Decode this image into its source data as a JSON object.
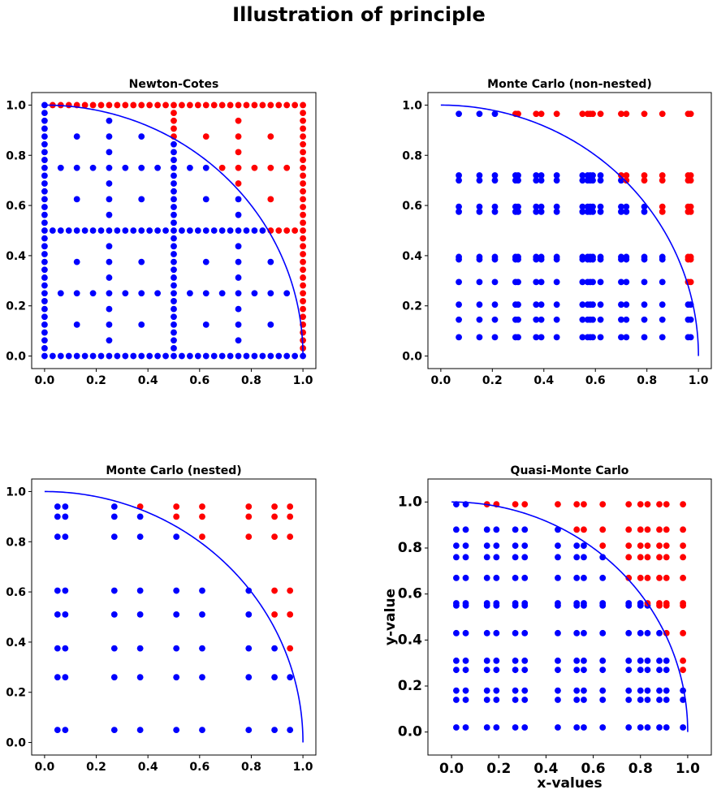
{
  "figure_title": "Illustration of principle",
  "colors": {
    "inside": "#0000ff",
    "outside": "#ff0000",
    "curve": "#0000ff"
  },
  "chart_data": [
    {
      "type": "scatter",
      "title": "Newton-Cotes",
      "xlabel": "",
      "ylabel": "",
      "xlim": [
        -0.05,
        1.05
      ],
      "ylim": [
        -0.05,
        1.05
      ],
      "xticks": [
        "0.0",
        "0.2",
        "0.4",
        "0.6",
        "0.8",
        "1.0"
      ],
      "yticks": [
        "0.0",
        "0.2",
        "0.4",
        "0.6",
        "0.8",
        "1.0"
      ],
      "curve": "quarter-circle y = sqrt(1 - x^2)",
      "grid": false,
      "points": {
        "kind": "newton-cotes-grid"
      }
    },
    {
      "type": "scatter",
      "title": "Monte Carlo (non-nested)",
      "xlabel": "",
      "ylabel": "",
      "xlim": [
        -0.05,
        1.05
      ],
      "ylim": [
        -0.05,
        1.05
      ],
      "xticks": [
        "0.0",
        "0.2",
        "0.4",
        "0.6",
        "0.8",
        "1.0"
      ],
      "yticks": [
        "0.0",
        "0.2",
        "0.4",
        "0.6",
        "0.8",
        "1.0"
      ],
      "curve": "quarter-circle y = sqrt(1 - x^2)",
      "grid": false,
      "points": {
        "kind": "cross-product",
        "xs": [
          0.07,
          0.15,
          0.21,
          0.29,
          0.3,
          0.37,
          0.39,
          0.45,
          0.55,
          0.57,
          0.58,
          0.59,
          0.62,
          0.7,
          0.72,
          0.79,
          0.86,
          0.96,
          0.97
        ],
        "ys": [
          0.075,
          0.145,
          0.205,
          0.295,
          0.385,
          0.395,
          0.575,
          0.595,
          0.7,
          0.72,
          0.965
        ]
      }
    },
    {
      "type": "scatter",
      "title": "Monte Carlo (nested)",
      "xlabel": "",
      "ylabel": "",
      "xlim": [
        -0.05,
        1.05
      ],
      "ylim": [
        -0.05,
        1.05
      ],
      "xticks": [
        "0.0",
        "0.2",
        "0.4",
        "0.6",
        "0.8",
        "1.0"
      ],
      "yticks": [
        "0.0",
        "0.2",
        "0.4",
        "0.6",
        "0.8",
        "1.0"
      ],
      "curve": "quarter-circle y = sqrt(1 - x^2)",
      "grid": false,
      "points": {
        "kind": "cross-product",
        "xs": [
          0.05,
          0.08,
          0.27,
          0.37,
          0.51,
          0.61,
          0.79,
          0.89,
          0.95
        ],
        "ys": [
          0.05,
          0.26,
          0.375,
          0.51,
          0.605,
          0.82,
          0.9,
          0.94
        ]
      }
    },
    {
      "type": "scatter",
      "title": "Quasi-Monte Carlo",
      "xlabel": "x-values",
      "ylabel": "y-value",
      "xlim": [
        -0.1,
        1.1
      ],
      "ylim": [
        -0.1,
        1.1
      ],
      "xticks": [
        "0.0",
        "0.2",
        "0.4",
        "0.6",
        "0.8",
        "1.0"
      ],
      "yticks": [
        "0.0",
        "0.2",
        "0.4",
        "0.6",
        "0.8",
        "1.0"
      ],
      "curve": "quarter-circle y = sqrt(1 - x^2)",
      "grid": false,
      "points": {
        "kind": "cross-product",
        "xs": [
          0.02,
          0.06,
          0.15,
          0.19,
          0.27,
          0.31,
          0.45,
          0.53,
          0.56,
          0.64,
          0.75,
          0.8,
          0.83,
          0.88,
          0.91,
          0.98
        ],
        "ys": [
          0.02,
          0.14,
          0.18,
          0.27,
          0.31,
          0.43,
          0.55,
          0.56,
          0.67,
          0.76,
          0.81,
          0.88,
          0.99
        ]
      }
    }
  ]
}
